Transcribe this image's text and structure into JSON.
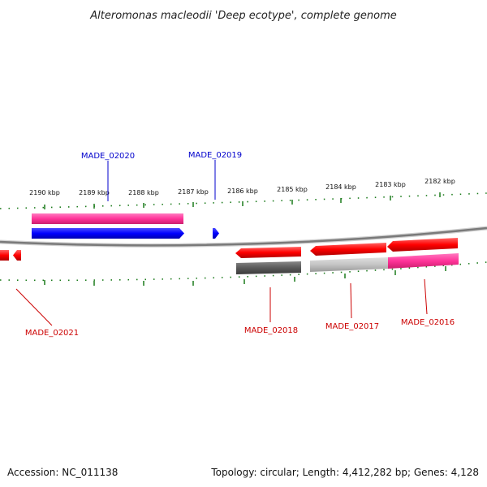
{
  "title": "Alteromonas macleodii 'Deep ecotype', complete genome",
  "footer": {
    "accession": "Accession: NC_011138",
    "topology": "Topology: circular; Length: 4,412,282 bp; Genes: 4,128"
  },
  "colors": {
    "forward_label": "#0000cc",
    "reverse_label": "#cc0000",
    "tick": "#1a7a1a",
    "backbone": "#888888"
  },
  "scale_labels": [
    "2190 kbp",
    "2189 kbp",
    "2188 kbp",
    "2187 kbp",
    "2186 kbp",
    "2185 kbp",
    "2184 kbp",
    "2183 kbp",
    "2182 kbp"
  ],
  "genes": {
    "forward": [
      "MADE_02020",
      "MADE_02019"
    ],
    "reverse": [
      "MADE_02021",
      "MADE_02018",
      "MADE_02017",
      "MADE_02016"
    ]
  }
}
